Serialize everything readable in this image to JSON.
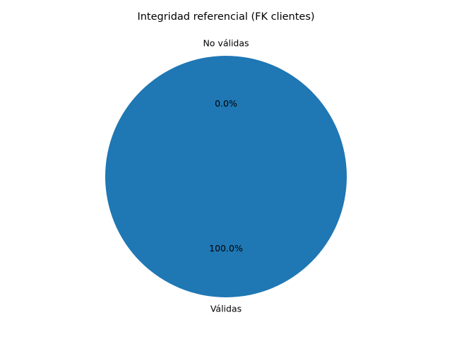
{
  "chart_data": {
    "type": "pie",
    "title": "Integridad referencial (FK clientes)",
    "labels": [
      "Válidas",
      "No válidas"
    ],
    "values": [
      100.0,
      0.0
    ],
    "percent_labels": [
      "100.0%",
      "0.0%"
    ],
    "colors": [
      "#1f77b4",
      "#ff7f0e"
    ],
    "start_angle_deg": 90,
    "legend": "none"
  }
}
